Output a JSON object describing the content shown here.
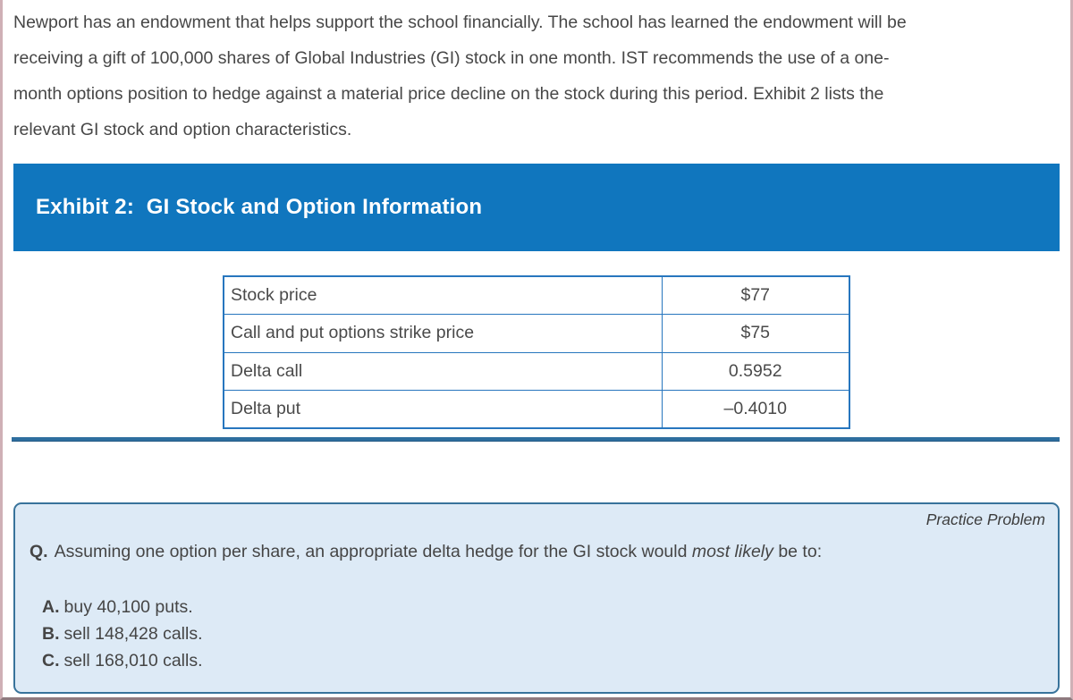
{
  "intro": {
    "lines": [
      "Newport has an endowment that helps support the school financially. The school has learned the endowment will be",
      "receiving a gift of 100,000 shares of Global Industries (GI) stock in one month. IST recommends the use of a one-",
      "month options position to hedge against a material price decline on the stock during this period. Exhibit 2 lists the",
      "relevant GI stock and option characteristics."
    ]
  },
  "exhibit": {
    "title": "Exhibit 2:  GI Stock and Option Information",
    "header_bg": "#1076BE",
    "table_border_color": "#2776BE",
    "table": {
      "rows": [
        {
          "label": "Stock price",
          "value": "$77"
        },
        {
          "label": "Call and put options strike price",
          "value": "$75"
        },
        {
          "label": "Delta call",
          "value": "0.5952"
        },
        {
          "label": "Delta put",
          "value": "–0.4010"
        }
      ]
    }
  },
  "divider_color": "#2E6E9F",
  "practice_problem": {
    "badge": "Practice Problem",
    "box_bg": "#DDEAF6",
    "box_border_color": "#38739B",
    "question": {
      "label": "Q.",
      "text_before_italic": "Assuming one option per share, an appropriate delta hedge for the GI stock would ",
      "italic": "most likely",
      "text_after_italic": " be to:"
    },
    "options": [
      {
        "letter": "A.",
        "text": "buy 40,100 puts."
      },
      {
        "letter": "B.",
        "text": "sell 148,428 calls."
      },
      {
        "letter": "C.",
        "text": "sell 168,010 calls."
      }
    ]
  }
}
